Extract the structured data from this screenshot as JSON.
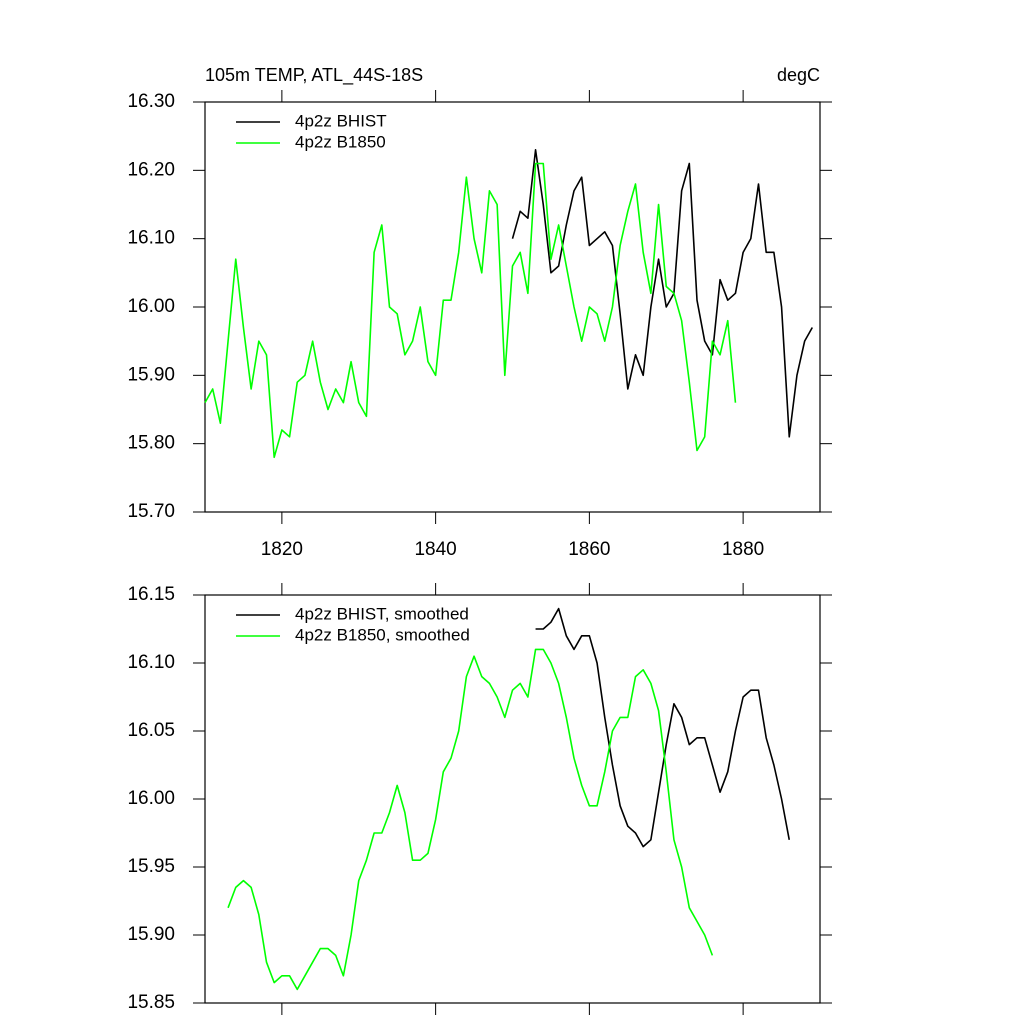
{
  "chart_data": [
    {
      "type": "line",
      "title": "105m TEMP, ATL_44S-18S",
      "units": "degC",
      "xlim": [
        1810,
        1890
      ],
      "xticks": [
        1820,
        1840,
        1860,
        1880
      ],
      "ylim": [
        15.7,
        16.3
      ],
      "yticks": [
        {
          "value": 15.7,
          "label": "15.70"
        },
        {
          "value": 15.8,
          "label": "15.80"
        },
        {
          "value": 15.9,
          "label": "15.90"
        },
        {
          "value": 16.0,
          "label": "16.00"
        },
        {
          "value": 16.1,
          "label": "16.10"
        },
        {
          "value": 16.2,
          "label": "16.20"
        },
        {
          "value": 16.3,
          "label": "16.30"
        }
      ],
      "legend": "top-left",
      "series": [
        {
          "name": "4p2z BHIST",
          "color": "#000000",
          "x": [
            1850,
            1851,
            1852,
            1853,
            1854,
            1855,
            1856,
            1857,
            1858,
            1859,
            1860,
            1861,
            1862,
            1863,
            1864,
            1865,
            1866,
            1867,
            1868,
            1869,
            1870,
            1871,
            1872,
            1873,
            1874,
            1875,
            1876,
            1877,
            1878,
            1879,
            1880,
            1881,
            1882,
            1883,
            1884,
            1885,
            1886,
            1887,
            1888,
            1889
          ],
          "values": [
            16.1,
            16.14,
            16.13,
            16.23,
            16.15,
            16.05,
            16.06,
            16.12,
            16.17,
            16.19,
            16.09,
            16.1,
            16.11,
            16.09,
            15.99,
            15.88,
            15.93,
            15.9,
            16.0,
            16.07,
            16.0,
            16.02,
            16.17,
            16.21,
            16.01,
            15.95,
            15.93,
            16.04,
            16.01,
            16.02,
            16.08,
            16.1,
            16.18,
            16.08,
            16.08,
            16.0,
            15.81,
            15.9,
            15.95,
            15.97
          ]
        },
        {
          "name": "4p2z B1850",
          "color": "#00ff00",
          "x": [
            1810,
            1811,
            1812,
            1813,
            1814,
            1815,
            1816,
            1817,
            1818,
            1819,
            1820,
            1821,
            1822,
            1823,
            1824,
            1825,
            1826,
            1827,
            1828,
            1829,
            1830,
            1831,
            1832,
            1833,
            1834,
            1835,
            1836,
            1837,
            1838,
            1839,
            1840,
            1841,
            1842,
            1843,
            1844,
            1845,
            1846,
            1847,
            1848,
            1849,
            1850,
            1851,
            1852,
            1853,
            1854,
            1855,
            1856,
            1857,
            1858,
            1859,
            1860,
            1861,
            1862,
            1863,
            1864,
            1865,
            1866,
            1867,
            1868,
            1869,
            1870,
            1871,
            1872,
            1873,
            1874,
            1875,
            1876,
            1877,
            1878,
            1879
          ],
          "values": [
            15.86,
            15.88,
            15.83,
            15.95,
            16.07,
            15.97,
            15.88,
            15.95,
            15.93,
            15.78,
            15.82,
            15.81,
            15.89,
            15.9,
            15.95,
            15.89,
            15.85,
            15.88,
            15.86,
            15.92,
            15.86,
            15.84,
            16.08,
            16.12,
            16.0,
            15.99,
            15.93,
            15.95,
            16.0,
            15.92,
            15.9,
            16.01,
            16.01,
            16.08,
            16.19,
            16.1,
            16.05,
            16.17,
            16.15,
            15.9,
            16.06,
            16.08,
            16.02,
            16.21,
            16.21,
            16.07,
            16.12,
            16.06,
            16.0,
            15.95,
            16.0,
            15.99,
            15.95,
            16.0,
            16.09,
            16.14,
            16.18,
            16.08,
            16.02,
            16.15,
            16.03,
            16.02,
            15.98,
            15.89,
            15.79,
            15.81,
            15.95,
            15.93,
            15.98,
            15.86
          ]
        }
      ]
    },
    {
      "type": "line",
      "xlim": [
        1810,
        1890
      ],
      "xticks": [
        1820,
        1840,
        1860,
        1880
      ],
      "ylim": [
        15.85,
        16.15
      ],
      "yticks": [
        {
          "value": 15.85,
          "label": "15.85"
        },
        {
          "value": 15.9,
          "label": "15.90"
        },
        {
          "value": 15.95,
          "label": "15.95"
        },
        {
          "value": 16.0,
          "label": "16.00"
        },
        {
          "value": 16.05,
          "label": "16.05"
        },
        {
          "value": 16.1,
          "label": "16.10"
        },
        {
          "value": 16.15,
          "label": "16.15"
        }
      ],
      "legend": "top-left",
      "series": [
        {
          "name": "4p2z BHIST, smoothed",
          "color": "#000000",
          "x": [
            1853,
            1854,
            1855,
            1856,
            1857,
            1858,
            1859,
            1860,
            1861,
            1862,
            1863,
            1864,
            1865,
            1866,
            1867,
            1868,
            1869,
            1870,
            1871,
            1872,
            1873,
            1874,
            1875,
            1876,
            1877,
            1878,
            1879,
            1880,
            1881,
            1882,
            1883,
            1884,
            1885,
            1886
          ],
          "values": [
            16.125,
            16.125,
            16.13,
            16.14,
            16.12,
            16.11,
            16.12,
            16.12,
            16.1,
            16.06,
            16.025,
            15.995,
            15.98,
            15.975,
            15.965,
            15.97,
            16.005,
            16.04,
            16.07,
            16.06,
            16.04,
            16.045,
            16.045,
            16.025,
            16.005,
            16.02,
            16.05,
            16.075,
            16.08,
            16.08,
            16.045,
            16.025,
            16.0,
            15.97
          ]
        },
        {
          "name": "4p2z B1850, smoothed",
          "color": "#00ff00",
          "x": [
            1813,
            1814,
            1815,
            1816,
            1817,
            1818,
            1819,
            1820,
            1821,
            1822,
            1823,
            1824,
            1825,
            1826,
            1827,
            1828,
            1829,
            1830,
            1831,
            1832,
            1833,
            1834,
            1835,
            1836,
            1837,
            1838,
            1839,
            1840,
            1841,
            1842,
            1843,
            1844,
            1845,
            1846,
            1847,
            1848,
            1849,
            1850,
            1851,
            1852,
            1853,
            1854,
            1855,
            1856,
            1857,
            1858,
            1859,
            1860,
            1861,
            1862,
            1863,
            1864,
            1865,
            1866,
            1867,
            1868,
            1869,
            1870,
            1871,
            1872,
            1873,
            1874,
            1875,
            1876
          ],
          "values": [
            15.92,
            15.935,
            15.94,
            15.935,
            15.915,
            15.88,
            15.865,
            15.87,
            15.87,
            15.86,
            15.87,
            15.88,
            15.89,
            15.89,
            15.885,
            15.87,
            15.9,
            15.94,
            15.955,
            15.975,
            15.975,
            15.99,
            16.01,
            15.99,
            15.955,
            15.955,
            15.96,
            15.985,
            16.02,
            16.03,
            16.05,
            16.09,
            16.105,
            16.09,
            16.085,
            16.075,
            16.06,
            16.08,
            16.085,
            16.075,
            16.11,
            16.11,
            16.1,
            16.085,
            16.06,
            16.03,
            16.01,
            15.995,
            15.995,
            16.02,
            16.05,
            16.06,
            16.06,
            16.09,
            16.095,
            16.085,
            16.065,
            16.02,
            15.97,
            15.95,
            15.92,
            15.91,
            15.9,
            15.885
          ]
        }
      ]
    }
  ]
}
